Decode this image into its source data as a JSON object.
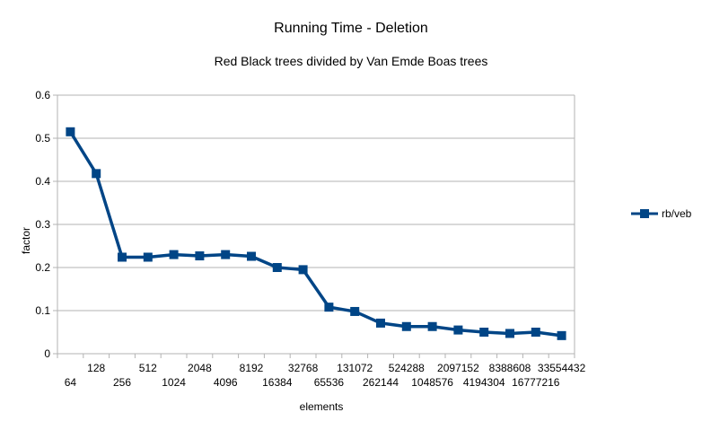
{
  "chart_data": {
    "type": "line",
    "title": "Running Time - Deletion",
    "subtitle": "Red Black trees divided by Van Emde Boas trees",
    "xlabel": "elements",
    "ylabel": "factor",
    "categories": [
      "64",
      "128",
      "256",
      "512",
      "1024",
      "2048",
      "4096",
      "8192",
      "16384",
      "32768",
      "65536",
      "131072",
      "262144",
      "524288",
      "1048576",
      "2097152",
      "4194304",
      "8388608",
      "16777216",
      "33554432"
    ],
    "series": [
      {
        "name": "rb/veb",
        "color": "#004586",
        "marker": "square",
        "values": [
          0.515,
          0.418,
          0.224,
          0.224,
          0.23,
          0.227,
          0.23,
          0.226,
          0.2,
          0.195,
          0.108,
          0.098,
          0.071,
          0.063,
          0.063,
          0.055,
          0.05,
          0.047,
          0.05,
          0.042
        ]
      }
    ],
    "ylim": [
      0,
      0.6
    ],
    "yticks": [
      "0",
      "0.1",
      "0.2",
      "0.3",
      "0.4",
      "0.5",
      "0.6"
    ],
    "grid": true,
    "legend_position": "right"
  }
}
